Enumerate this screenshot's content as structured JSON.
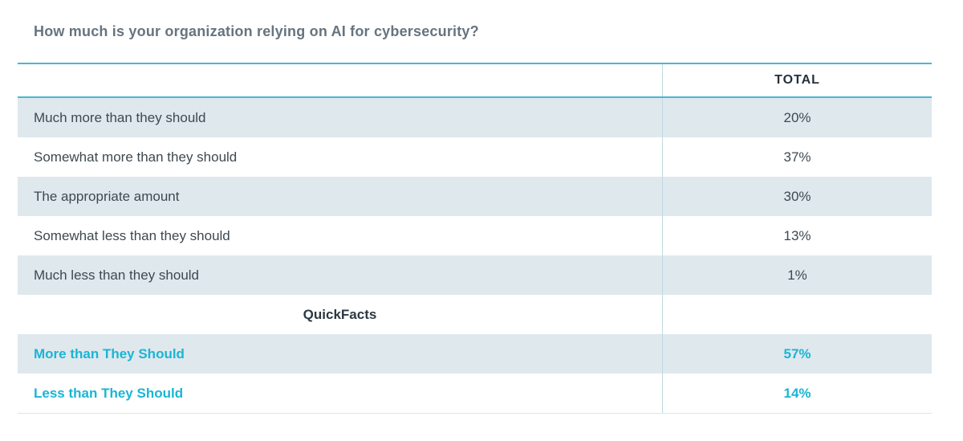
{
  "title": "How much is your organization relying on AI for cybersecurity?",
  "table": {
    "value_header": "TOTAL",
    "rows": [
      {
        "label": "Much more than they should",
        "value": "20%"
      },
      {
        "label": "Somewhat more than they should",
        "value": "37%"
      },
      {
        "label": "The appropriate amount",
        "value": "30%"
      },
      {
        "label": "Somewhat less than they should",
        "value": "13%"
      },
      {
        "label": "Much less than they should",
        "value": "1%"
      }
    ],
    "section_header": "QuickFacts",
    "quickfacts": [
      {
        "label": "More than They Should",
        "value": "57%"
      },
      {
        "label": "Less than They Should",
        "value": "14%"
      }
    ]
  },
  "colors": {
    "accent_cyan_text": "#1ab5d5",
    "rule_cyan": "#47b8d0",
    "column_divider": "#bed9e1",
    "row_shade": "#dfe8ed",
    "bottom_rule": "#dde3e7",
    "title_text": "#66747f",
    "header_text": "#24303b",
    "body_text": "#3d4951"
  },
  "chart_data": {
    "type": "table",
    "title": "How much is your organization relying on AI for cybersecurity?",
    "columns": [
      "",
      "TOTAL"
    ],
    "categories": [
      "Much more than they should",
      "Somewhat more than they should",
      "The appropriate amount",
      "Somewhat less than they should",
      "Much less than they should"
    ],
    "values": [
      20,
      37,
      30,
      13,
      1
    ],
    "section_header": "QuickFacts",
    "quickfacts": [
      {
        "label": "More than They Should",
        "value": 57
      },
      {
        "label": "Less than They Should",
        "value": 14
      }
    ],
    "value_unit": "%"
  }
}
